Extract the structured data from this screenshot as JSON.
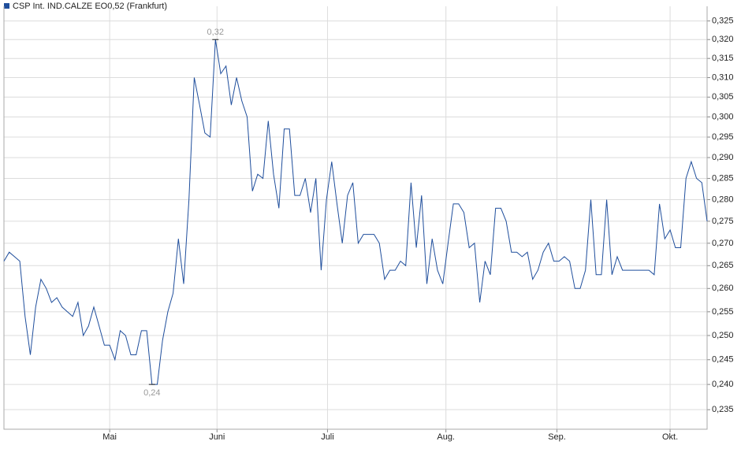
{
  "chart_data": {
    "type": "line",
    "series": [
      {
        "name": "CSP Int. IND.CALZE EO0,52 (Frankfurt)",
        "color": "#1f4e9c",
        "values": [
          0.266,
          0.268,
          0.267,
          0.266,
          0.254,
          0.246,
          0.256,
          0.262,
          0.26,
          0.257,
          0.258,
          0.256,
          0.255,
          0.254,
          0.257,
          0.25,
          0.252,
          0.256,
          0.252,
          0.248,
          0.248,
          0.245,
          0.251,
          0.25,
          0.246,
          0.246,
          0.251,
          0.251,
          0.24,
          0.24,
          0.249,
          0.255,
          0.259,
          0.271,
          0.261,
          0.28,
          0.31,
          0.303,
          0.296,
          0.295,
          0.32,
          0.311,
          0.313,
          0.303,
          0.31,
          0.304,
          0.3,
          0.282,
          0.286,
          0.285,
          0.299,
          0.286,
          0.278,
          0.297,
          0.297,
          0.281,
          0.281,
          0.285,
          0.277,
          0.285,
          0.264,
          0.28,
          0.289,
          0.279,
          0.27,
          0.281,
          0.284,
          0.27,
          0.272,
          0.272,
          0.272,
          0.27,
          0.262,
          0.264,
          0.264,
          0.266,
          0.265,
          0.284,
          0.269,
          0.281,
          0.261,
          0.271,
          0.264,
          0.261,
          0.27,
          0.279,
          0.279,
          0.277,
          0.269,
          0.27,
          0.257,
          0.266,
          0.263,
          0.278,
          0.278,
          0.275,
          0.268,
          0.268,
          0.267,
          0.268,
          0.262,
          0.264,
          0.268,
          0.27,
          0.266,
          0.266,
          0.267,
          0.266,
          0.26,
          0.26,
          0.264,
          0.28,
          0.263,
          0.263,
          0.28,
          0.263,
          0.267,
          0.264,
          0.264,
          0.264,
          0.264,
          0.264,
          0.264,
          0.263,
          0.279,
          0.271,
          0.273,
          0.269,
          0.269,
          0.285,
          0.289,
          0.285,
          0.284,
          0.275
        ]
      }
    ],
    "high_label": "0,32",
    "low_label": "0,24",
    "log_scale": true,
    "ylim": [
      0.2312,
      0.329
    ],
    "yticks": [
      {
        "value": 0.235,
        "label": "0,235"
      },
      {
        "value": 0.24,
        "label": "0,240"
      },
      {
        "value": 0.245,
        "label": "0,245"
      },
      {
        "value": 0.25,
        "label": "0,250"
      },
      {
        "value": 0.255,
        "label": "0,255"
      },
      {
        "value": 0.26,
        "label": "0,260"
      },
      {
        "value": 0.265,
        "label": "0,265"
      },
      {
        "value": 0.27,
        "label": "0,270"
      },
      {
        "value": 0.275,
        "label": "0,275"
      },
      {
        "value": 0.28,
        "label": "0,280"
      },
      {
        "value": 0.285,
        "label": "0,285"
      },
      {
        "value": 0.29,
        "label": "0,290"
      },
      {
        "value": 0.295,
        "label": "0,295"
      },
      {
        "value": 0.3,
        "label": "0,300"
      },
      {
        "value": 0.305,
        "label": "0,305"
      },
      {
        "value": 0.31,
        "label": "0,310"
      },
      {
        "value": 0.315,
        "label": "0,315"
      },
      {
        "value": 0.32,
        "label": "0,320"
      },
      {
        "value": 0.325,
        "label": "0,325"
      }
    ],
    "xticks": [
      {
        "value": 20,
        "label": "Mai"
      },
      {
        "value": 40.3,
        "label": "Juni"
      },
      {
        "value": 61.2,
        "label": "Juli"
      },
      {
        "value": 83.6,
        "label": "Aug."
      },
      {
        "value": 104.6,
        "label": "Sep."
      },
      {
        "value": 126,
        "label": "Okt."
      }
    ],
    "grid": true
  }
}
